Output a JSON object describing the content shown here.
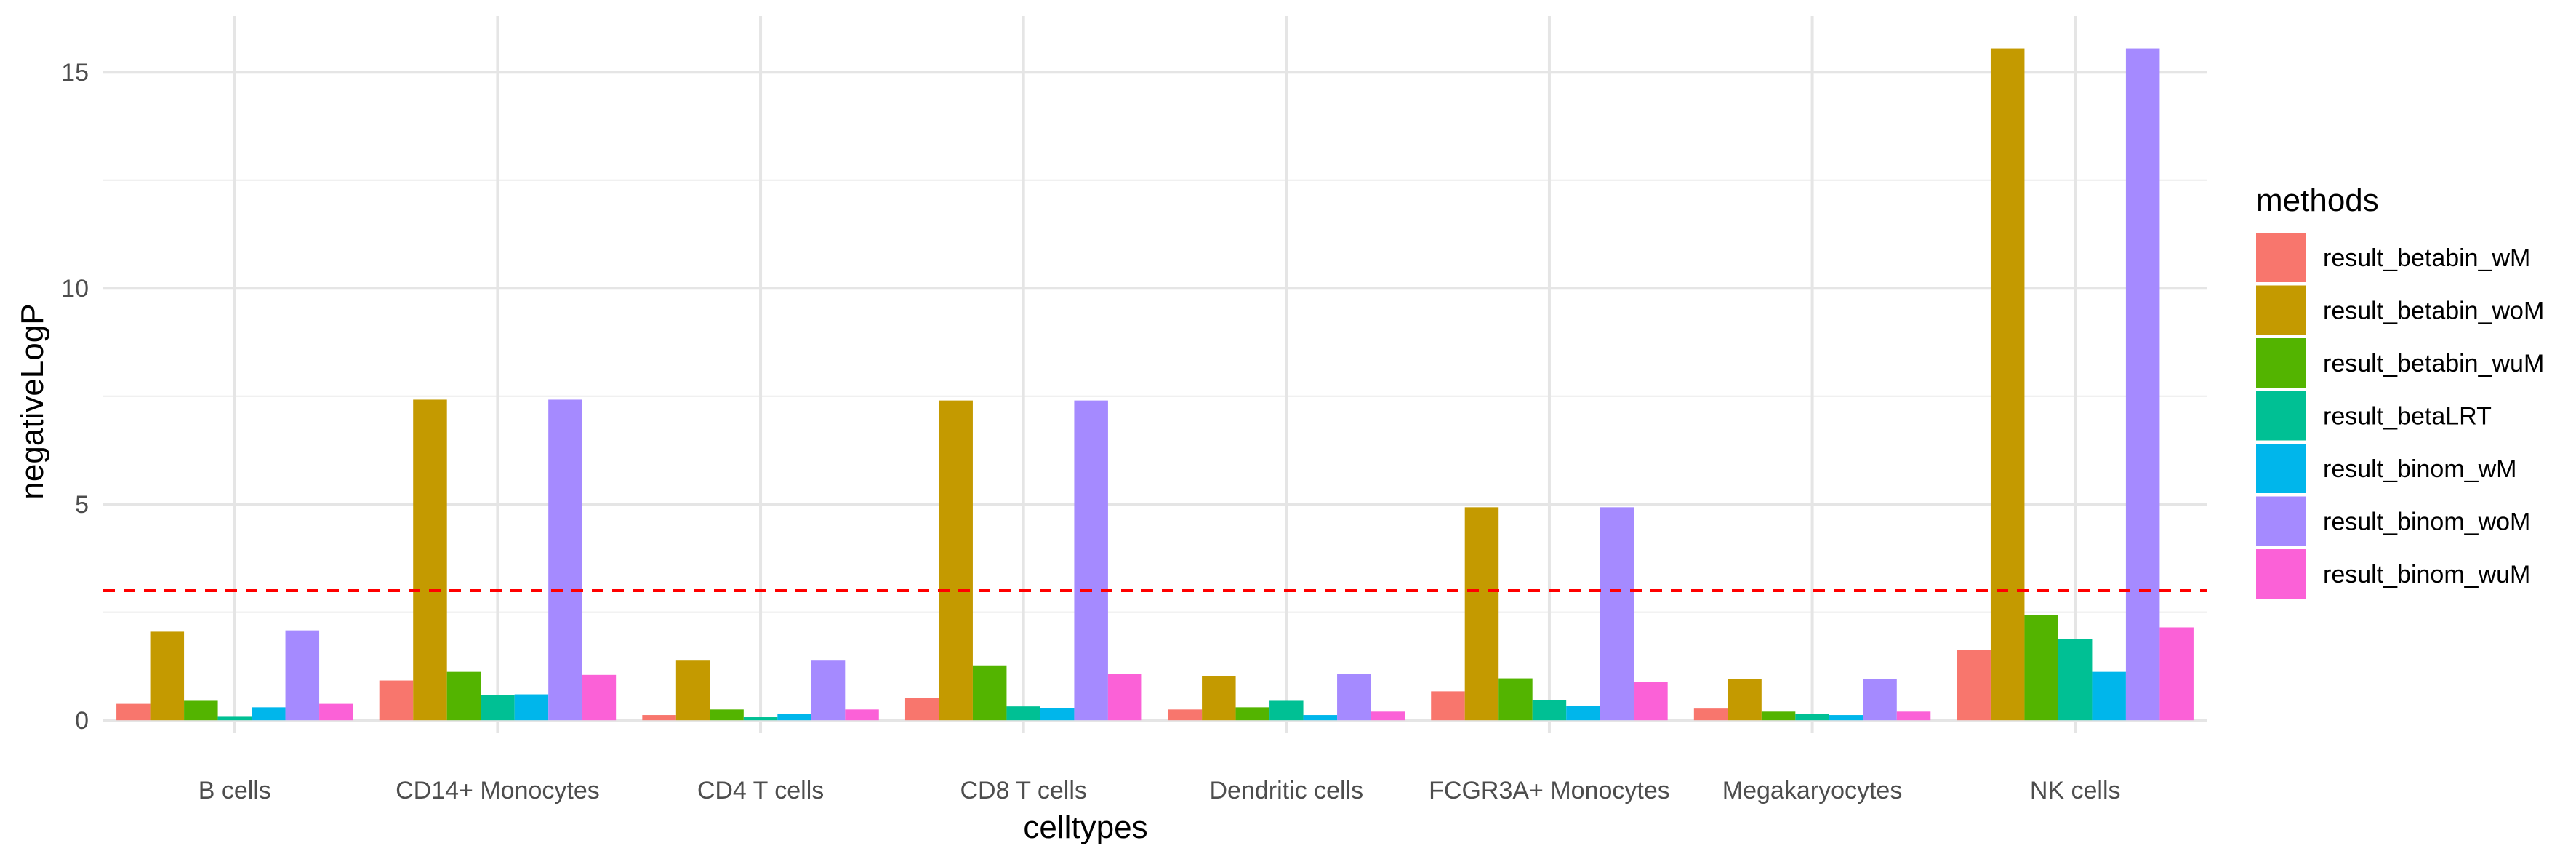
{
  "chart_data": {
    "type": "bar",
    "xlabel": "celltypes",
    "ylabel": "negativeLogP",
    "legend_title": "methods",
    "legend_position": "right",
    "grid": true,
    "ylim": [
      -0.3,
      16.3
    ],
    "yticks": [
      0,
      5,
      10,
      15
    ],
    "categories": [
      "B cells",
      "CD14+ Monocytes",
      "CD4 T cells",
      "CD8 T cells",
      "Dendritic cells",
      "FCGR3A+ Monocytes",
      "Megakaryocytes",
      "NK cells"
    ],
    "series": [
      {
        "name": "result_betabin_wM",
        "color": "#F8766D",
        "values": [
          0.38,
          0.92,
          0.12,
          0.52,
          0.25,
          0.67,
          0.27,
          1.62
        ]
      },
      {
        "name": "result_betabin_woM",
        "color": "#C49A00",
        "values": [
          2.05,
          7.42,
          1.38,
          7.4,
          1.02,
          4.93,
          0.95,
          15.55
        ]
      },
      {
        "name": "result_betabin_wuM",
        "color": "#53B400",
        "values": [
          0.45,
          1.12,
          0.25,
          1.27,
          0.3,
          0.97,
          0.2,
          2.43
        ]
      },
      {
        "name": "result_betaLRT",
        "color": "#00C094",
        "values": [
          0.08,
          0.58,
          0.07,
          0.32,
          0.45,
          0.47,
          0.14,
          1.88
        ]
      },
      {
        "name": "result_binom_wM",
        "color": "#00B6EB",
        "values": [
          0.3,
          0.6,
          0.15,
          0.28,
          0.12,
          0.33,
          0.12,
          1.12
        ]
      },
      {
        "name": "result_binom_woM",
        "color": "#A58AFF",
        "values": [
          2.08,
          7.42,
          1.38,
          7.4,
          1.08,
          4.93,
          0.95,
          15.55
        ]
      },
      {
        "name": "result_binom_wuM",
        "color": "#FB61D7",
        "values": [
          0.38,
          1.05,
          0.25,
          1.08,
          0.2,
          0.88,
          0.2,
          2.15
        ]
      }
    ],
    "reference_line": {
      "y": 3,
      "color": "#FF0000",
      "style": "dashed"
    }
  }
}
